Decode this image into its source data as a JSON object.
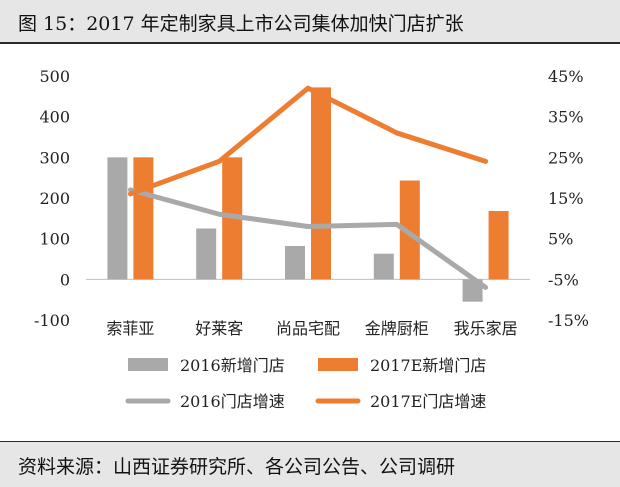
{
  "title": "图 15：2017 年定制家具上市公司集体加快门店扩张",
  "source": "资料来源：山西证券研究所、各公司公告、公司调研",
  "colors": {
    "gray": "#a9a9a9",
    "orange": "#ed7d31",
    "band_bg": "#e6e6e6",
    "text": "#111111"
  },
  "chart_data": {
    "type": "bar",
    "categories": [
      "索菲亚",
      "好莱客",
      "尚品宅配",
      "金牌厨柜",
      "我乐家居"
    ],
    "left_axis": {
      "ylim": [
        -100,
        500
      ],
      "ticks": [
        -100,
        0,
        100,
        200,
        300,
        400,
        500
      ],
      "tick_labels": [
        "-100",
        "0",
        "100",
        "200",
        "300",
        "400",
        "500"
      ]
    },
    "right_axis": {
      "ylim": [
        -0.15,
        0.45
      ],
      "ticks": [
        -0.15,
        -0.05,
        0.05,
        0.15,
        0.25,
        0.35,
        0.45
      ],
      "tick_labels": [
        "-15%",
        "-5%",
        "5%",
        "15%",
        "25%",
        "35%",
        "45%"
      ]
    },
    "series": [
      {
        "name": "2016新增门店",
        "kind": "bar",
        "axis": "left",
        "color": "#a9a9a9",
        "values": [
          300,
          125,
          82,
          63,
          -55
        ]
      },
      {
        "name": "2017E新增门店",
        "kind": "bar",
        "axis": "left",
        "color": "#ed7d31",
        "values": [
          300,
          300,
          472,
          243,
          168
        ]
      },
      {
        "name": "2016门店增速",
        "kind": "line",
        "axis": "right",
        "color": "#a9a9a9",
        "values": [
          0.17,
          0.11,
          0.08,
          0.085,
          -0.07
        ]
      },
      {
        "name": "2017E门店增速",
        "kind": "line",
        "axis": "right",
        "color": "#ed7d31",
        "values": [
          0.16,
          0.24,
          0.42,
          0.31,
          0.24
        ]
      }
    ],
    "legend": {
      "placement": "bottom",
      "entries": [
        "2016新增门店",
        "2017E新增门店",
        "2016门店增速",
        "2017E门店增速"
      ]
    },
    "grid": false
  }
}
